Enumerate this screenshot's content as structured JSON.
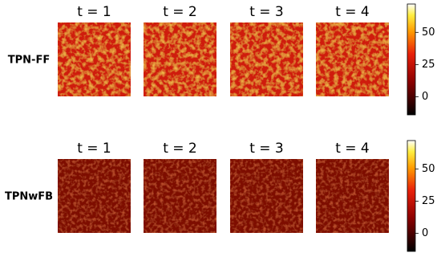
{
  "chart_data": [
    {
      "type": "heatmap",
      "row_label": "TPN-FF",
      "panel_titles": [
        "t = 1",
        "t = 2",
        "t = 3",
        "t = 4"
      ],
      "colorbar": {
        "lim": [
          -14,
          72
        ],
        "ticks": [
          0,
          25,
          50
        ]
      }
    },
    {
      "type": "heatmap",
      "row_label": "TPNwFB",
      "panel_titles": [
        "t = 1",
        "t = 2",
        "t = 3",
        "t = 4"
      ],
      "colorbar": {
        "lim": [
          -14,
          72
        ],
        "ticks": [
          0,
          25,
          50
        ]
      }
    }
  ]
}
